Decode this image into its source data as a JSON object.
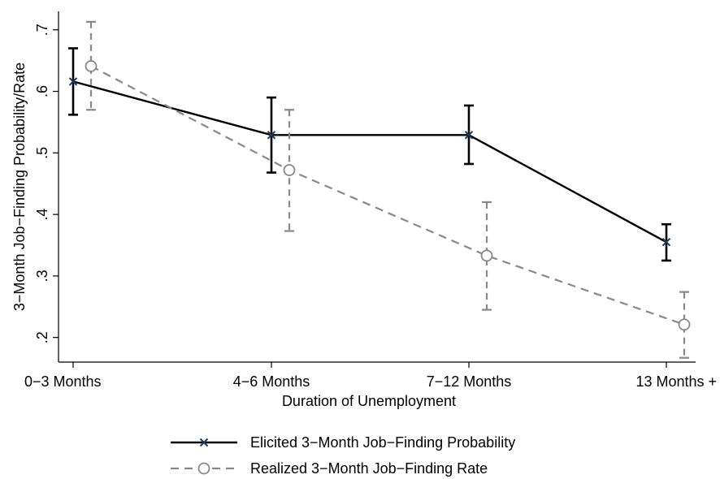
{
  "chart_data": {
    "type": "line",
    "categories": [
      "0−3 Months",
      "4−6 Months",
      "7−12 Months",
      "13 Months +"
    ],
    "xlabel": "Duration of Unemployment",
    "ylabel": "3−Month Job−Finding Probability/Rate",
    "ylim": [
      0.16,
      0.73
    ],
    "yticks": [
      0.2,
      0.3,
      0.4,
      0.5,
      0.6,
      0.7
    ],
    "ytick_labels": [
      ".2",
      ".3",
      ".4",
      ".5",
      ".6",
      ".7"
    ],
    "grid": false,
    "legend_position": "bottom",
    "series": [
      {
        "name": "Elicited 3−Month Job−Finding Probability",
        "values": [
          0.616,
          0.529,
          0.529,
          0.355
        ],
        "ci_low": [
          0.562,
          0.468,
          0.482,
          0.325
        ],
        "ci_high": [
          0.67,
          0.59,
          0.577,
          0.384
        ],
        "color": "#000000",
        "line_style": "solid",
        "marker": "x",
        "marker_color": "#1a3a5c"
      },
      {
        "name": "Realized 3−Month Job−Finding Rate",
        "values": [
          0.641,
          0.472,
          0.333,
          0.221
        ],
        "ci_low": [
          0.57,
          0.373,
          0.245,
          0.167
        ],
        "ci_high": [
          0.713,
          0.57,
          0.42,
          0.274
        ],
        "color": "#888888",
        "line_style": "dashed",
        "marker": "circle"
      }
    ]
  }
}
